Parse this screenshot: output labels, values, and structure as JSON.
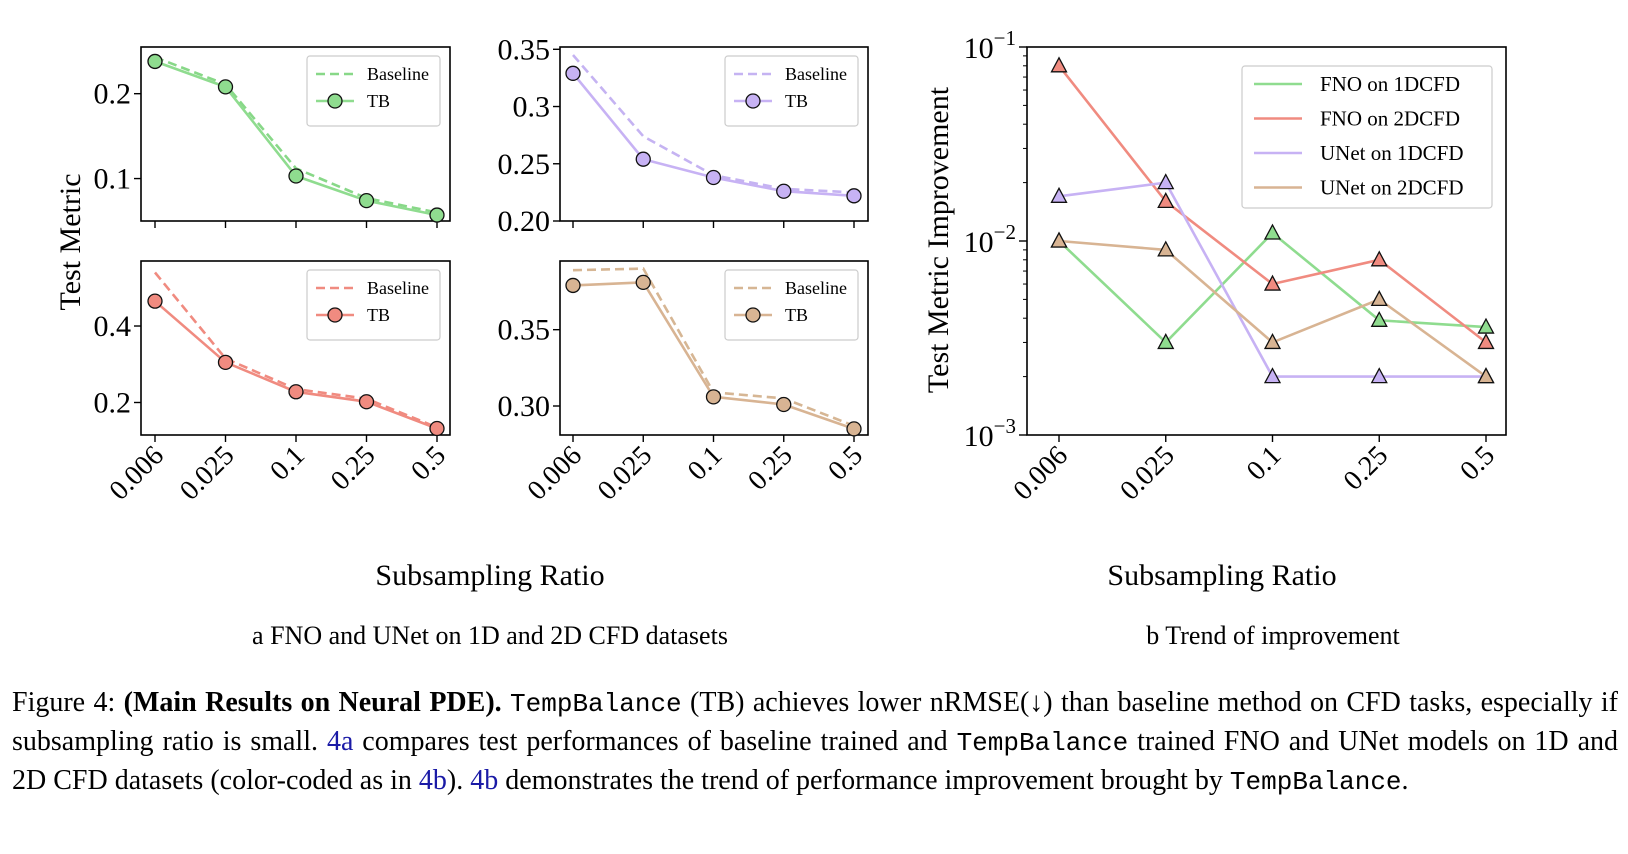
{
  "palette": {
    "fno1d": "#8fdc8f",
    "fno1d_line": "#88d888",
    "fno2d": "#f08b80",
    "fno2d_line": "#f08b80",
    "unet1d": "#c7b2f4",
    "unet1d_line": "#c5b3f2",
    "unet2d": "#d8b493",
    "unet2d_line": "#d6b694"
  },
  "shared_xlabel": "Subsampling Ratio",
  "shared_ylabel_a": "Test Metric",
  "subcaption_a": "a FNO and UNet on 1D and 2D CFD datasets",
  "subcaption_b": "b Trend of improvement",
  "caption": {
    "prefix": "Figure 4: ",
    "bold": "(Main Results on Neural PDE).",
    "s1_mono": "TempBalance",
    "s1_text": " (TB) achieves lower nRMSE(↓) than baseline method on CFD tasks, especially if subsampling ratio is small. ",
    "ref1": "4a",
    "s2_text": " compares test performances of baseline trained and ",
    "s2_mono": "TempBalance",
    "s3_text": " trained FNO and UNet models on 1D and 2D CFD datasets (color-coded as in ",
    "ref2": "4b",
    "s3_end": "). ",
    "ref3": "4b",
    "s4_text": " demonstrates the trend of performance improvement brought by ",
    "s4_mono": "TempBalance",
    "s4_end": "."
  },
  "chart_data": [
    {
      "id": "fno-1dcfd",
      "type": "line",
      "categories": [
        "0.006",
        "0.025",
        "0.1",
        "0.25",
        "0.5"
      ],
      "series": [
        {
          "name": "Baseline",
          "values": [
            0.243,
            0.211,
            0.112,
            0.077,
            0.06
          ],
          "style": "dashed",
          "color_key": "fno1d_line"
        },
        {
          "name": "TB",
          "values": [
            0.238,
            0.208,
            0.103,
            0.074,
            0.057
          ],
          "style": "solid-marker",
          "color_key": "fno1d"
        }
      ],
      "yticks": [
        0.1,
        0.2
      ],
      "ytick_labels": [
        "0.1",
        "0.2"
      ],
      "ylim": [
        0.05,
        0.255
      ],
      "show_xticklabels": false,
      "legend": "top-right"
    },
    {
      "id": "unet-1dcfd",
      "type": "line",
      "categories": [
        "0.006",
        "0.025",
        "0.1",
        "0.25",
        "0.5"
      ],
      "series": [
        {
          "name": "Baseline",
          "values": [
            0.345,
            0.274,
            0.24,
            0.228,
            0.225
          ],
          "style": "dashed",
          "color_key": "unet1d_line"
        },
        {
          "name": "TB",
          "values": [
            0.329,
            0.254,
            0.238,
            0.226,
            0.222
          ],
          "style": "solid-marker",
          "color_key": "unet1d"
        }
      ],
      "yticks": [
        0.2,
        0.25,
        0.3,
        0.35
      ],
      "ytick_labels": [
        "0.20",
        "0.25",
        "0.3",
        "0.35"
      ],
      "ylim": [
        0.2,
        0.352
      ],
      "show_xticklabels": false,
      "legend": "top-right"
    },
    {
      "id": "fno-2dcfd",
      "type": "line",
      "categories": [
        "0.006",
        "0.025",
        "0.1",
        "0.25",
        "0.5"
      ],
      "series": [
        {
          "name": "Baseline",
          "values": [
            0.54,
            0.315,
            0.235,
            0.21,
            0.135
          ],
          "style": "dashed",
          "color_key": "fno2d_line"
        },
        {
          "name": "TB",
          "values": [
            0.465,
            0.305,
            0.228,
            0.202,
            0.132
          ],
          "style": "solid-marker",
          "color_key": "fno2d"
        }
      ],
      "yticks": [
        0.2,
        0.4
      ],
      "ytick_labels": [
        "0.2",
        "0.4"
      ],
      "ylim": [
        0.115,
        0.57
      ],
      "show_xticklabels": true,
      "legend": "top-right"
    },
    {
      "id": "unet-2dcfd",
      "type": "line",
      "categories": [
        "0.006",
        "0.025",
        "0.1",
        "0.25",
        "0.5"
      ],
      "series": [
        {
          "name": "Baseline",
          "values": [
            0.389,
            0.39,
            0.309,
            0.305,
            0.287
          ],
          "style": "dashed",
          "color_key": "unet2d_line"
        },
        {
          "name": "TB",
          "values": [
            0.379,
            0.381,
            0.306,
            0.301,
            0.285
          ],
          "style": "solid-marker",
          "color_key": "unet2d"
        }
      ],
      "yticks": [
        0.3,
        0.35
      ],
      "ytick_labels": [
        "0.30",
        "0.35"
      ],
      "ylim": [
        0.281,
        0.395
      ],
      "show_xticklabels": true,
      "legend": "top-right"
    },
    {
      "id": "improvement-trend",
      "type": "line",
      "scale_y": "log",
      "categories": [
        "0.006",
        "0.025",
        "0.1",
        "0.25",
        "0.5"
      ],
      "xlabel": "Subsampling Ratio",
      "ylabel": "Test Metric Improvement",
      "ylim": [
        0.001,
        0.1
      ],
      "ytick_labels": [
        {
          "base": "10",
          "exp": "−1",
          "value": 0.1
        },
        {
          "base": "10",
          "exp": "−2",
          "value": 0.01
        },
        {
          "base": "10",
          "exp": "−3",
          "value": 0.001
        }
      ],
      "marker": "triangle",
      "legend": "top-right",
      "series": [
        {
          "name": "FNO on 1DCFD",
          "values": [
            0.01,
            0.003,
            0.011,
            0.0039,
            0.0036
          ],
          "color_key": "fno1d"
        },
        {
          "name": "FNO on 2DCFD",
          "values": [
            0.08,
            0.016,
            0.006,
            0.008,
            0.003
          ],
          "color_key": "fno2d"
        },
        {
          "name": "UNet on 1DCFD",
          "values": [
            0.017,
            0.02,
            0.002,
            0.002,
            0.002
          ],
          "color_key": "unet1d"
        },
        {
          "name": "UNet on 2DCFD",
          "values": [
            0.01,
            0.009,
            0.003,
            0.005,
            0.002
          ],
          "color_key": "unet2d"
        }
      ]
    }
  ]
}
